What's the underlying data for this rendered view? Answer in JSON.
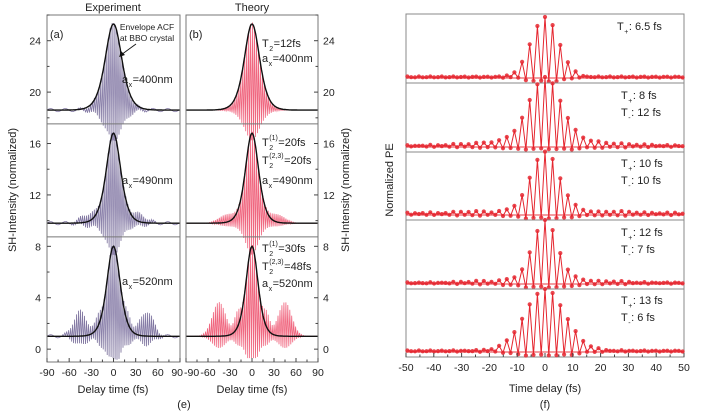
{
  "colors": {
    "experiment": "#9d93bb",
    "experiment_dark": "#3c3260",
    "theory": "#f0667f",
    "envelope": "#111111",
    "pe": "#e5262f"
  },
  "chart_data": [
    {
      "type": "line",
      "panel": "(a)",
      "title": "Experiment",
      "xlabel": "Delay time (fs)",
      "ylabel": "SH-Intensity (normalized)",
      "xlim": [
        -90,
        90
      ],
      "ylim": [
        -1,
        26
      ],
      "xticks": [
        -90,
        -60,
        -30,
        0,
        30,
        60,
        90
      ],
      "yticks": [
        0,
        4,
        8,
        12,
        16,
        20,
        24
      ],
      "annotation": {
        "line1": "Envelope ACF",
        "line2": "at BBO crystal"
      },
      "traces": [
        {
          "a": "a",
          "sub": "x",
          "rest": "=400nm",
          "baseline": 18.6,
          "peak": 25.3
        },
        {
          "a": "a",
          "sub": "x",
          "rest": "=490nm",
          "baseline": 9.8,
          "peak": 16.8
        },
        {
          "a": "a",
          "sub": "x",
          "rest": "=520nm",
          "baseline": 1.0,
          "peak": 8.0
        }
      ]
    },
    {
      "type": "line",
      "panel": "(b)",
      "title": "Theory",
      "xlabel": "Delay time (fs)",
      "ylabel": "SH-Intensity (normalized)",
      "xlim": [
        -90,
        90
      ],
      "ylim": [
        -1,
        26
      ],
      "xticks": [
        -90,
        -60,
        -30,
        0,
        30,
        60,
        90
      ],
      "yticks": [
        0,
        4,
        8,
        12,
        16,
        20,
        24
      ],
      "traces": [
        {
          "baseline": 18.6,
          "peak": 25.3,
          "labels": [
            {
              "main": "T",
              "sub": "2",
              "sup": "",
              "rest": "=12fs"
            },
            {
              "main": "a",
              "sub": "x",
              "sup": "",
              "rest": "=400nm"
            }
          ]
        },
        {
          "baseline": 9.8,
          "peak": 16.8,
          "labels": [
            {
              "main": "T",
              "sub": "2",
              "sup": "(1)",
              "rest": "=20fs"
            },
            {
              "main": "T",
              "sub": "2",
              "sup": "(2,3)",
              "rest": "=20fs"
            },
            {
              "main": "a",
              "sub": "x",
              "sup": "",
              "rest": "=490nm"
            }
          ]
        },
        {
          "baseline": 1.0,
          "peak": 8.0,
          "labels": [
            {
              "main": "T",
              "sub": "2",
              "sup": "(1)",
              "rest": "=30fs"
            },
            {
              "main": "T",
              "sub": "2",
              "sup": "(2,3)",
              "rest": "=48fs"
            },
            {
              "main": "a",
              "sub": "x",
              "sup": "",
              "rest": "=520nm"
            }
          ]
        }
      ]
    },
    {
      "type": "line",
      "panel": "(f)",
      "xlabel": "Time delay (fs)",
      "ylabel": "Normalized PE",
      "xlim": [
        -50,
        50
      ],
      "xticks": [
        -50,
        -40,
        -30,
        -20,
        -10,
        0,
        10,
        20,
        30,
        40,
        50
      ],
      "markers": true,
      "traces": [
        {
          "labels": [
            {
              "main": "T",
              "sub": "+",
              "rest": ": 6.5 fs"
            }
          ]
        },
        {
          "labels": [
            {
              "main": "T",
              "sub": "+",
              "rest": ": 8 fs"
            },
            {
              "main": "T",
              "sub": "-",
              "rest": ": 12 fs"
            }
          ]
        },
        {
          "labels": [
            {
              "main": "T",
              "sub": "+",
              "rest": ": 10 fs"
            },
            {
              "main": "T",
              "sub": "-",
              "rest": ": 10 fs"
            }
          ]
        },
        {
          "labels": [
            {
              "main": "T",
              "sub": "+",
              "rest": ": 12 fs"
            },
            {
              "main": "T",
              "sub": "-",
              "rest": ": 7 fs"
            }
          ]
        },
        {
          "labels": [
            {
              "main": "T",
              "sub": "+",
              "rest": ": 13 fs"
            },
            {
              "main": "T",
              "sub": "-",
              "rest": ": 6 fs"
            }
          ]
        }
      ]
    }
  ],
  "captions": {
    "e": "(e)",
    "f": "(f)"
  }
}
